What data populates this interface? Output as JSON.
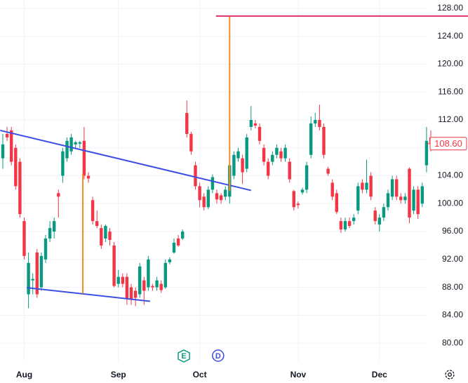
{
  "chart_data": {
    "type": "candlestick",
    "categories": [
      null,
      null,
      null,
      null,
      null,
      "Aug",
      null,
      null,
      null,
      null,
      null,
      null,
      null,
      null,
      null,
      null,
      null,
      null,
      null,
      null,
      null,
      null,
      null,
      null,
      null,
      null,
      null,
      "Sep",
      null,
      null,
      null,
      null,
      null,
      null,
      null,
      null,
      null,
      null,
      null,
      null,
      null,
      null,
      null,
      null,
      null,
      null,
      "Oct",
      null,
      null,
      null,
      null,
      null,
      null,
      null,
      null,
      null,
      null,
      null,
      null,
      null,
      null,
      null,
      null,
      null,
      null,
      null,
      null,
      null,
      null,
      "Nov",
      null,
      null,
      null,
      null,
      null,
      null,
      null,
      null,
      null,
      null,
      null,
      null,
      null,
      null,
      null,
      null,
      null,
      null,
      "Dec",
      null,
      null,
      null,
      null,
      null,
      null,
      null,
      null,
      null,
      null,
      null,
      null
    ],
    "open": [
      106.5,
      110,
      110.5,
      108,
      106,
      97.5,
      87,
      89,
      93,
      88,
      92,
      95,
      96,
      101.5,
      104,
      106.5,
      107.5,
      108.5,
      108.6,
      109,
      104,
      100.5,
      97.5,
      96.5,
      95,
      96,
      94,
      88.5,
      89.5,
      89.5,
      88,
      87.5,
      87,
      89,
      88,
      88.2,
      88,
      88.5,
      88,
      91.6,
      93,
      95,
      95,
      113,
      110,
      105.5,
      102.5,
      101,
      99.5,
      102,
      101.5,
      101.2,
      101,
      101,
      104,
      106.5,
      106.5,
      105,
      111,
      111.5,
      111,
      108,
      106,
      106,
      107,
      107.5,
      106.5,
      106,
      101.8,
      100,
      101.6,
      102,
      107,
      111.5,
      112,
      111,
      105,
      103,
      101.5,
      97.5,
      96.3,
      97.5,
      97.5,
      99,
      103,
      102,
      104,
      99,
      97,
      98,
      99.5,
      101,
      103.5,
      101,
      100.5,
      105,
      99,
      102,
      100,
      105.5,
      109.5
    ],
    "high": [
      110,
      111,
      111,
      108.5,
      106.5,
      98,
      93,
      90,
      93.5,
      93,
      95.5,
      97.5,
      98,
      102,
      108,
      109.5,
      110,
      109,
      109,
      111,
      104.5,
      101,
      99,
      97,
      97,
      96.5,
      94.5,
      90.5,
      90,
      90,
      88.5,
      88,
      91.5,
      89.5,
      92.5,
      88.5,
      89.5,
      89,
      92,
      92.3,
      95,
      95.5,
      96.3,
      114.8,
      110.3,
      106,
      103,
      101.5,
      102.5,
      104.2,
      102,
      101.5,
      102.5,
      106,
      107.5,
      108,
      107,
      110,
      114,
      112,
      111.5,
      108.5,
      106.5,
      107.5,
      108.5,
      108,
      108.5,
      106.5,
      102,
      100.3,
      102.3,
      106,
      112.5,
      113,
      114.2,
      111.5,
      105.3,
      103.5,
      102,
      98,
      98,
      98,
      98.5,
      103,
      103.5,
      106.3,
      104.5,
      99.5,
      98.5,
      100,
      102,
      104,
      104,
      101.5,
      101.5,
      105.2,
      102.5,
      102.5,
      103,
      111,
      110.5
    ],
    "low": [
      105,
      109,
      105.5,
      102,
      98,
      92,
      85,
      87,
      86.5,
      87.5,
      91.5,
      94.5,
      95,
      98,
      103,
      106,
      107,
      108,
      108,
      103.5,
      103,
      97,
      96.5,
      93.5,
      94.5,
      94,
      88,
      88,
      88,
      85.5,
      85.5,
      85.3,
      86.5,
      85.5,
      87.5,
      87.5,
      87.5,
      87.2,
      87.8,
      91.3,
      92.8,
      93.8,
      94.8,
      109.5,
      107,
      102,
      99.5,
      99,
      99.2,
      101.5,
      100,
      100,
      100.5,
      100,
      103.5,
      106,
      102.8,
      104.5,
      110.5,
      110.8,
      108.5,
      105.5,
      103.5,
      105.5,
      106.5,
      106,
      106,
      103,
      99,
      99.3,
      101.3,
      101.5,
      106.5,
      111,
      110.5,
      106.5,
      104,
      100.5,
      98.5,
      95.8,
      96,
      96.5,
      97,
      98.5,
      101.5,
      101.5,
      100.5,
      97,
      96,
      97.5,
      99,
      100.5,
      100.5,
      100,
      100,
      97.2,
      98.5,
      97.8,
      99.5,
      104.5,
      107.5
    ],
    "close": [
      108.5,
      109.5,
      106,
      102.5,
      98.5,
      92.5,
      91.5,
      89.2,
      87,
      92.5,
      95,
      96.5,
      97.5,
      101,
      107.5,
      109,
      109.5,
      108.8,
      108.8,
      104,
      103.6,
      97.5,
      96.8,
      94,
      96.8,
      94.8,
      88.2,
      89.5,
      88.5,
      86.3,
      86.2,
      86.5,
      91,
      87.5,
      92,
      88,
      89,
      87.6,
      91.5,
      92,
      94.4,
      94,
      96,
      110,
      107.5,
      102.5,
      100.5,
      99.5,
      102,
      103.8,
      100.6,
      100.5,
      102,
      105.5,
      107,
      107.5,
      104.5,
      109.5,
      112,
      111.2,
      109,
      106,
      104,
      107,
      108,
      106.5,
      108,
      103.5,
      99.5,
      99.8,
      102,
      105.5,
      111.5,
      112,
      111,
      107,
      104.3,
      101,
      98.8,
      96.3,
      97.5,
      96.8,
      98,
      102.5,
      102,
      103,
      101,
      97.5,
      98,
      99.5,
      101.5,
      103.5,
      101,
      100.5,
      101,
      98,
      102,
      98.5,
      102.5,
      109,
      108.6
    ],
    "up_color": "#089981",
    "down_color": "#f23645",
    "ylim": [
      77.4,
      129.2
    ],
    "yticks": [
      {
        "value": 80,
        "label": "80.00"
      },
      {
        "value": 84,
        "label": "84.00"
      },
      {
        "value": 88,
        "label": "88.00"
      },
      {
        "value": 92,
        "label": "92.00"
      },
      {
        "value": 96,
        "label": "96.00"
      },
      {
        "value": 100,
        "label": "100.00"
      },
      {
        "value": 104,
        "label": "104.00"
      },
      {
        "value": 108,
        "label": "108.00"
      },
      {
        "value": 112,
        "label": "112.00"
      },
      {
        "value": 116,
        "label": "116.00"
      },
      {
        "value": 120,
        "label": "120.00"
      },
      {
        "value": 124,
        "label": "124.00"
      },
      {
        "value": 128,
        "label": "128.00"
      }
    ],
    "grid": true,
    "last_price": {
      "value": 108.6,
      "label": "108.60"
    },
    "drawings": [
      {
        "color": "#3d4fe0",
        "start": [
          -0.6,
          110.5
        ],
        "end": [
          58,
          101.9
        ]
      },
      {
        "color": "#3d4fe0",
        "start": [
          5.6,
          87.95
        ],
        "end": [
          34.4,
          86.0
        ]
      },
      {
        "color": "#f08c2e",
        "start": [
          18.7,
          104.3
        ],
        "end": [
          18.7,
          87.1
        ]
      },
      {
        "color": "#f08c2e",
        "start": [
          53,
          126.9
        ],
        "end": [
          53,
          101.8
        ]
      },
      {
        "color": "#e0306a",
        "start": [
          49.8,
          126.9
        ],
        "end": [
          108.7,
          126.9
        ]
      }
    ],
    "events": [
      {
        "label": "E",
        "x": 42.3,
        "color": "#089981"
      },
      {
        "label": "D",
        "x": 50.3,
        "color": "#3d4fe0"
      }
    ]
  }
}
